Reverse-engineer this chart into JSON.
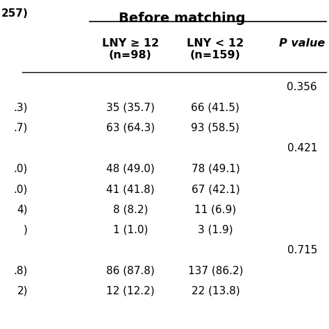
{
  "title": "Before matching",
  "col_headers": [
    "LNY ≥ 12\n(n=98)",
    "LNY < 12\n(n=159)",
    "P value"
  ],
  "left_label": "257)",
  "rows": [
    {
      "left": "",
      "lny_ge": "",
      "lny_lt": "",
      "pval": "0.356",
      "indent": false
    },
    {
      "left": ".3)",
      "lny_ge": "35 (35.7)",
      "lny_lt": "66 (41.5)",
      "pval": "",
      "indent": false
    },
    {
      "left": ".7)",
      "lny_ge": "63 (64.3)",
      "lny_lt": "93 (58.5)",
      "pval": "",
      "indent": false
    },
    {
      "left": "",
      "lny_ge": "",
      "lny_lt": "",
      "pval": "0.421",
      "indent": false
    },
    {
      "left": ".0)",
      "lny_ge": "48 (49.0)",
      "lny_lt": "78 (49.1)",
      "pval": "",
      "indent": false
    },
    {
      "left": ".0)",
      "lny_ge": "41 (41.8)",
      "lny_lt": "67 (42.1)",
      "pval": "",
      "indent": false
    },
    {
      "left": "4)",
      "lny_ge": "8 (8.2)",
      "lny_lt": "11 (6.9)",
      "pval": "",
      "indent": false
    },
    {
      "left": ")",
      "lny_ge": "1 (1.0)",
      "lny_lt": "3 (1.9)",
      "pval": "",
      "indent": false
    },
    {
      "left": "",
      "lny_ge": "",
      "lny_lt": "",
      "pval": "0.715",
      "indent": false
    },
    {
      "left": ".8)",
      "lny_ge": "86 (87.8)",
      "lny_lt": "137 (86.2)",
      "pval": "",
      "indent": false
    },
    {
      "left": "2)",
      "lny_ge": "12 (12.2)",
      "lny_lt": "22 (13.8)",
      "pval": "",
      "indent": false
    }
  ],
  "bg_color": "#ffffff",
  "text_color": "#000000",
  "font_size": 11,
  "header_font_size": 11.5
}
